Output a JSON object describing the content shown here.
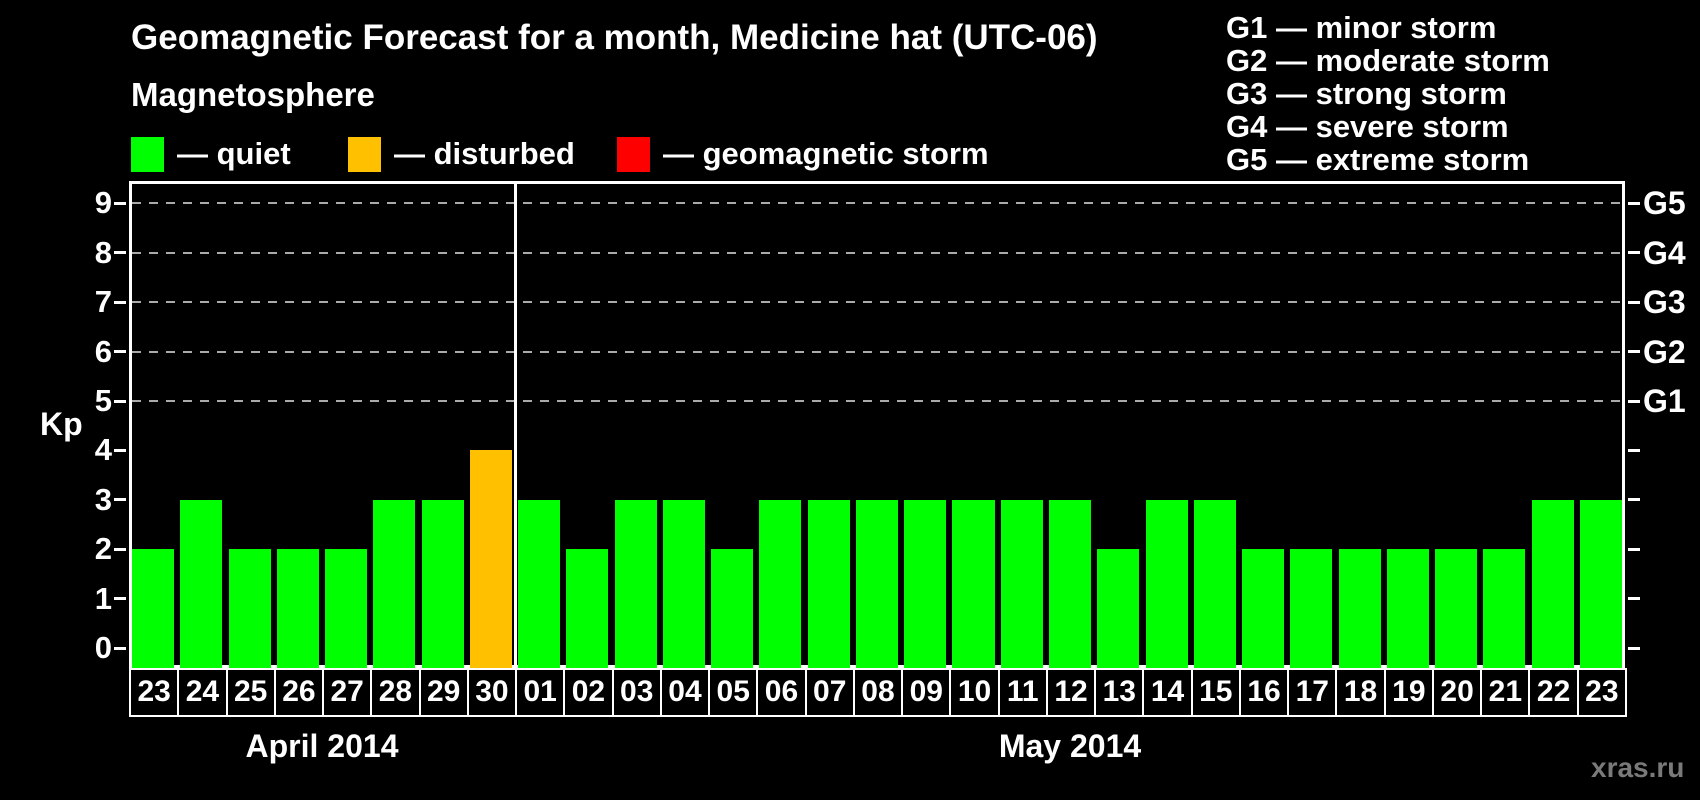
{
  "page": {
    "title": "Geomagnetic Forecast for a month, Medicine hat (UTC-06)",
    "subtitle": "Magnetosphere",
    "watermark": "xras.ru"
  },
  "colors": {
    "background": "#000000",
    "quiet": "#00ff00",
    "disturbed": "#ffc000",
    "storm": "#ff0000",
    "axis": "#ffffff",
    "grid": "#aaaaaa",
    "watermark": "#7a7a7a"
  },
  "legend": {
    "items": [
      {
        "key": "quiet",
        "label": "— quiet",
        "color": "#00ff00"
      },
      {
        "key": "disturbed",
        "label": "— disturbed",
        "color": "#ffc000"
      },
      {
        "key": "storm",
        "label": "— geomagnetic storm",
        "color": "#ff0000"
      }
    ]
  },
  "g_legend": {
    "items": [
      "G1 — minor storm",
      "G2 — moderate storm",
      "G3 — strong storm",
      "G4 — severe storm",
      "G5 — extreme storm"
    ]
  },
  "chart_data": {
    "type": "bar",
    "title": "Geomagnetic Forecast for a month, Medicine hat (UTC-06)",
    "ylabel": "Kp",
    "ylim": [
      -0.4,
      9.45
    ],
    "yticks": [
      0,
      1,
      2,
      3,
      4,
      5,
      6,
      7,
      8,
      9
    ],
    "gridlines": [
      5,
      6,
      7,
      8,
      9
    ],
    "grid_style": "dashed horizontal lines at storm levels only",
    "legend_position": "top-left and top-right",
    "right_axis_labels": [
      {
        "kp": 5,
        "label": "G1"
      },
      {
        "kp": 6,
        "label": "G2"
      },
      {
        "kp": 7,
        "label": "G3"
      },
      {
        "kp": 8,
        "label": "G4"
      },
      {
        "kp": 9,
        "label": "G5"
      }
    ],
    "months": [
      {
        "label": "April 2014",
        "days": [
          {
            "day": "23",
            "kp": 2,
            "status": "quiet"
          },
          {
            "day": "24",
            "kp": 3,
            "status": "quiet"
          },
          {
            "day": "25",
            "kp": 2,
            "status": "quiet"
          },
          {
            "day": "26",
            "kp": 2,
            "status": "quiet"
          },
          {
            "day": "27",
            "kp": 2,
            "status": "quiet"
          },
          {
            "day": "28",
            "kp": 3,
            "status": "quiet"
          },
          {
            "day": "29",
            "kp": 3,
            "status": "quiet"
          },
          {
            "day": "30",
            "kp": 4,
            "status": "disturbed"
          }
        ]
      },
      {
        "label": "May 2014",
        "days": [
          {
            "day": "01",
            "kp": 3,
            "status": "quiet"
          },
          {
            "day": "02",
            "kp": 2,
            "status": "quiet"
          },
          {
            "day": "03",
            "kp": 3,
            "status": "quiet"
          },
          {
            "day": "04",
            "kp": 3,
            "status": "quiet"
          },
          {
            "day": "05",
            "kp": 2,
            "status": "quiet"
          },
          {
            "day": "06",
            "kp": 3,
            "status": "quiet"
          },
          {
            "day": "07",
            "kp": 3,
            "status": "quiet"
          },
          {
            "day": "08",
            "kp": 3,
            "status": "quiet"
          },
          {
            "day": "09",
            "kp": 3,
            "status": "quiet"
          },
          {
            "day": "10",
            "kp": 3,
            "status": "quiet"
          },
          {
            "day": "11",
            "kp": 3,
            "status": "quiet"
          },
          {
            "day": "12",
            "kp": 3,
            "status": "quiet"
          },
          {
            "day": "13",
            "kp": 2,
            "status": "quiet"
          },
          {
            "day": "14",
            "kp": 3,
            "status": "quiet"
          },
          {
            "day": "15",
            "kp": 3,
            "status": "quiet"
          },
          {
            "day": "16",
            "kp": 2,
            "status": "quiet"
          },
          {
            "day": "17",
            "kp": 2,
            "status": "quiet"
          },
          {
            "day": "18",
            "kp": 2,
            "status": "quiet"
          },
          {
            "day": "19",
            "kp": 2,
            "status": "quiet"
          },
          {
            "day": "20",
            "kp": 2,
            "status": "quiet"
          },
          {
            "day": "21",
            "kp": 2,
            "status": "quiet"
          },
          {
            "day": "22",
            "kp": 3,
            "status": "quiet"
          },
          {
            "day": "23",
            "kp": 3,
            "status": "quiet"
          }
        ]
      }
    ]
  }
}
